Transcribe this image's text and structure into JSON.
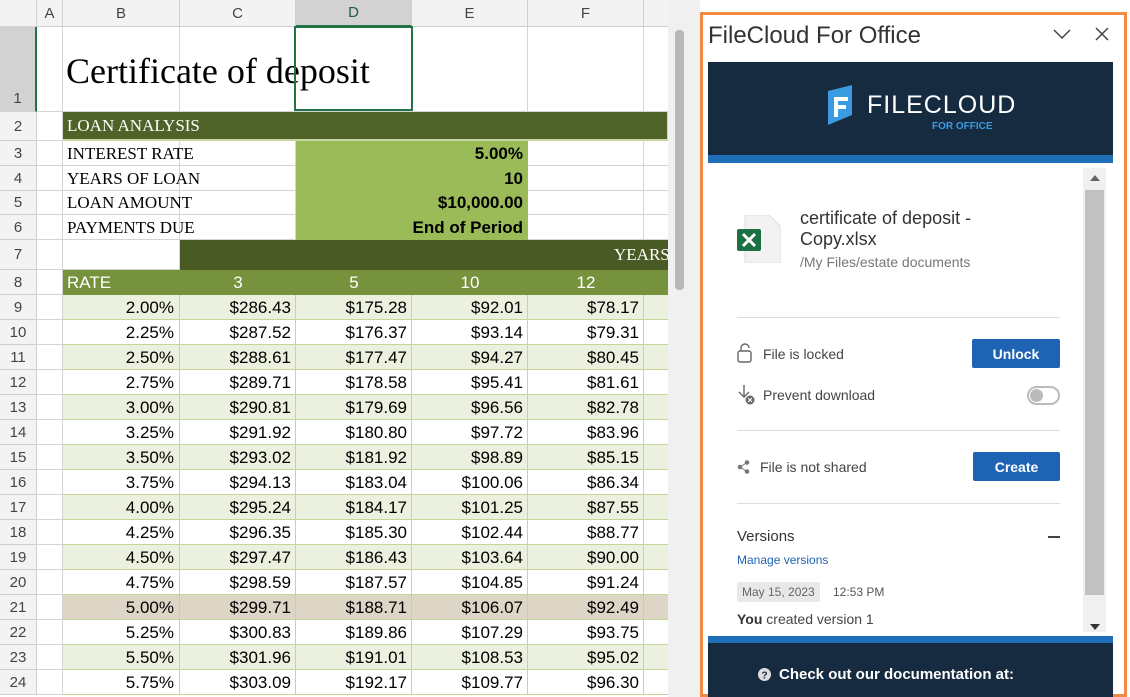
{
  "sheet": {
    "columns": [
      "A",
      "B",
      "C",
      "D",
      "E",
      "F"
    ],
    "row_numbers": [
      1,
      2,
      3,
      4,
      5,
      6,
      7,
      8,
      9,
      10,
      11,
      12,
      13,
      14,
      15,
      16,
      17,
      18,
      19,
      20,
      21,
      22,
      23,
      24
    ],
    "title": "Certificate of deposit",
    "loan_header": "LOAN ANALYSIS",
    "loan": [
      {
        "label": "INTEREST RATE",
        "value": "5.00%"
      },
      {
        "label": "YEARS OF LOAN",
        "value": "10"
      },
      {
        "label": "LOAN AMOUNT",
        "value": "$10,000.00"
      },
      {
        "label": "PAYMENTS DUE",
        "value": "End of Period"
      }
    ],
    "years_header": "YEARS",
    "table_header": [
      "RATE",
      "3",
      "5",
      "10",
      "12"
    ],
    "rows": [
      [
        "2.00%",
        "$286.43",
        "$175.28",
        "$92.01",
        "$78.17"
      ],
      [
        "2.25%",
        "$287.52",
        "$176.37",
        "$93.14",
        "$79.31"
      ],
      [
        "2.50%",
        "$288.61",
        "$177.47",
        "$94.27",
        "$80.45"
      ],
      [
        "2.75%",
        "$289.71",
        "$178.58",
        "$95.41",
        "$81.61"
      ],
      [
        "3.00%",
        "$290.81",
        "$179.69",
        "$96.56",
        "$82.78"
      ],
      [
        "3.25%",
        "$291.92",
        "$180.80",
        "$97.72",
        "$83.96"
      ],
      [
        "3.50%",
        "$293.02",
        "$181.92",
        "$98.89",
        "$85.15"
      ],
      [
        "3.75%",
        "$294.13",
        "$183.04",
        "$100.06",
        "$86.34"
      ],
      [
        "4.00%",
        "$295.24",
        "$184.17",
        "$101.25",
        "$87.55"
      ],
      [
        "4.25%",
        "$296.35",
        "$185.30",
        "$102.44",
        "$88.77"
      ],
      [
        "4.50%",
        "$297.47",
        "$186.43",
        "$103.64",
        "$90.00"
      ],
      [
        "4.75%",
        "$298.59",
        "$187.57",
        "$104.85",
        "$91.24"
      ],
      [
        "5.00%",
        "$299.71",
        "$188.71",
        "$106.07",
        "$92.49"
      ],
      [
        "5.25%",
        "$300.83",
        "$189.86",
        "$107.29",
        "$93.75"
      ],
      [
        "5.50%",
        "$301.96",
        "$191.01",
        "$108.53",
        "$95.02"
      ],
      [
        "5.75%",
        "$303.09",
        "$192.17",
        "$109.77",
        "$96.30"
      ]
    ]
  },
  "panel": {
    "title": "FileCloud For Office",
    "logo": "FILECLOUD",
    "logo_sub": "FOR OFFICE",
    "file_name": "certificate of deposit - Copy.xlsx",
    "file_path": "/My Files/estate documents",
    "locked": "File is locked",
    "unlock": "Unlock",
    "prevent": "Prevent download",
    "shared": "File is not shared",
    "create": "Create",
    "versions": "Versions",
    "manage": "Manage versions",
    "date": "May 15, 2023",
    "time": "12:53 PM",
    "version_user": "You",
    "version_text": "created version 1",
    "docs": "Check out our documentation at:"
  }
}
